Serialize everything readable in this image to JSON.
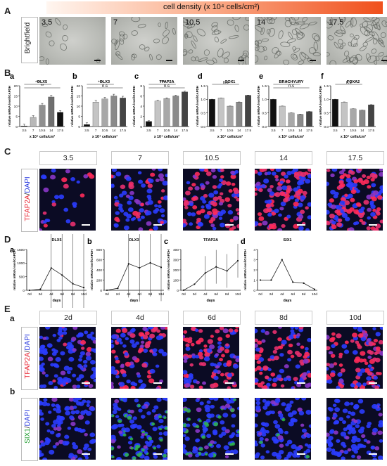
{
  "panelA": {
    "letter": "A",
    "gradient_label": "cell density (x 10⁴ cells/cm²)",
    "row_label": "Brightfield",
    "densities": [
      "3.5",
      "7",
      "10.5",
      "14",
      "17.5"
    ]
  },
  "panelB": {
    "letter": "B",
    "ylabel": "relative mRNA level/GAPDH",
    "xlabel": "x 10⁴ cells/cm²",
    "categories": [
      "3.5",
      "7",
      "10.5",
      "14",
      "17.5"
    ],
    "subpanels": [
      {
        "letter": "a",
        "title": "DLX5",
        "sig": [
          "***",
          "**"
        ]
      },
      {
        "letter": "b",
        "title": "DLX3",
        "sig": [
          "***",
          "n.s"
        ]
      },
      {
        "letter": "c",
        "title": "TFAP2A",
        "sig": [
          "***",
          "n.s"
        ]
      },
      {
        "letter": "d",
        "title": "SOX1",
        "sig": [
          "n.s"
        ]
      },
      {
        "letter": "e",
        "title": "BRACHYURY",
        "sig": [
          "*",
          "n.s"
        ]
      },
      {
        "letter": "f",
        "title": "FOXA2",
        "sig": [
          "n.s"
        ]
      }
    ]
  },
  "panelC": {
    "letter": "C",
    "row_label_marker": "TFAP2A",
    "row_label_sep": "/",
    "row_label_dapi": "DAPI",
    "densities": [
      "3.5",
      "7",
      "10.5",
      "14",
      "17.5"
    ]
  },
  "panelD": {
    "letter": "D",
    "ylabel": "relative mRNA level/GAPDH",
    "xlabel": "days",
    "days": [
      "0d",
      "2d",
      "4d",
      "6d",
      "8d",
      "10d"
    ],
    "subpanels": [
      {
        "letter": "a",
        "title": "DLX5"
      },
      {
        "letter": "b",
        "title": "DLX3"
      },
      {
        "letter": "c",
        "title": "TFAP2A"
      },
      {
        "letter": "d",
        "title": "SIX1"
      }
    ]
  },
  "panelE": {
    "letter": "E",
    "days": [
      "2d",
      "4d",
      "6d",
      "8d",
      "10d"
    ],
    "row_a": {
      "letter": "a",
      "marker": "TFAP2A",
      "sep": "/",
      "dapi": "DAPI"
    },
    "row_b": {
      "letter": "b",
      "marker": "SIX1",
      "sep": "/",
      "dapi": "DAPI"
    }
  },
  "colors": {
    "bar_gray_light": "#c8c8c8",
    "bar_gray_dark": "#8a8a8a",
    "bar_black": "#111111",
    "tfap2a_red": "#ff2a4a",
    "six1_green": "#2fbf3a",
    "dapi_blue": "#2a3cff",
    "gradient_start": "#fff3ec",
    "gradient_end": "#ef3b10"
  },
  "chart_data": [
    {
      "type": "bar",
      "title": "DLX5",
      "categories": [
        "3.5",
        "7",
        "10.5",
        "14",
        "17.5"
      ],
      "values": [
        0.3,
        4.5,
        10.5,
        14.5,
        7.0
      ],
      "ylim": [
        0,
        20
      ],
      "yticks": [
        0,
        5,
        10,
        15,
        20
      ]
    },
    {
      "type": "bar",
      "title": "DLX3",
      "categories": [
        "3.5",
        "7",
        "10.5",
        "14",
        "17.5"
      ],
      "values": [
        1.0,
        12.0,
        13.5,
        15.0,
        14.0
      ],
      "ylim": [
        0,
        20
      ],
      "yticks": [
        0,
        5,
        10,
        15,
        20
      ]
    },
    {
      "type": "bar",
      "title": "TFAP2A",
      "categories": [
        "3.5",
        "7",
        "10.5",
        "14",
        "17.5"
      ],
      "values": [
        1.0,
        5.0,
        5.5,
        6.0,
        6.8
      ],
      "ylim": [
        0,
        8
      ],
      "yticks": [
        0,
        2,
        4,
        6,
        8
      ]
    },
    {
      "type": "bar",
      "title": "SOX1",
      "categories": [
        "3.5",
        "7",
        "10.5",
        "14",
        "17.5"
      ],
      "values": [
        1.0,
        1.05,
        0.75,
        0.9,
        1.15
      ],
      "ylim": [
        0,
        1.5
      ],
      "yticks": [
        0.0,
        0.5,
        1.0,
        1.5
      ]
    },
    {
      "type": "bar",
      "title": "BRACHYURY",
      "categories": [
        "3.5",
        "7",
        "10.5",
        "14",
        "17.5"
      ],
      "values": [
        1.0,
        0.75,
        0.5,
        0.45,
        0.55
      ],
      "ylim": [
        0,
        1.5
      ],
      "yticks": [
        0.0,
        0.5,
        1.0,
        1.5
      ]
    },
    {
      "type": "bar",
      "title": "FOXA2",
      "categories": [
        "3.5",
        "7",
        "10.5",
        "14",
        "17.5"
      ],
      "values": [
        1.0,
        0.9,
        0.65,
        0.6,
        0.8
      ],
      "ylim": [
        0,
        1.5
      ],
      "yticks": [
        0.0,
        0.5,
        1.0,
        1.5
      ]
    },
    {
      "type": "line",
      "title": "DLX5",
      "x": [
        "0d",
        "2d",
        "4d",
        "6d",
        "8d",
        "10d"
      ],
      "values": [
        1,
        40,
        820,
        560,
        240,
        100
      ],
      "ylim": [
        0,
        1500
      ],
      "yticks": [
        0,
        500,
        1000,
        1500
      ]
    },
    {
      "type": "line",
      "title": "DLX3",
      "x": [
        "0d",
        "2d",
        "4d",
        "6d",
        "8d",
        "10d"
      ],
      "values": [
        1,
        40,
        520,
        440,
        540,
        450
      ],
      "ylim": [
        0,
        800
      ],
      "yticks": [
        0,
        200,
        400,
        600,
        800
      ]
    },
    {
      "type": "line",
      "title": "TFAP2A",
      "x": [
        "0d",
        "2d",
        "4d",
        "6d",
        "8d",
        "10d"
      ],
      "values": [
        1,
        60,
        170,
        230,
        190,
        290
      ],
      "ylim": [
        0,
        400
      ],
      "yticks": [
        0,
        100,
        200,
        300,
        400
      ]
    },
    {
      "type": "line",
      "title": "SIX1",
      "x": [
        "0d",
        "2d",
        "4d",
        "6d",
        "8d",
        "10d"
      ],
      "values": [
        1,
        1,
        3.0,
        0.8,
        0.7,
        0.1
      ],
      "ylim": [
        0,
        4
      ],
      "yticks": [
        0,
        1,
        2,
        3,
        4
      ]
    }
  ]
}
